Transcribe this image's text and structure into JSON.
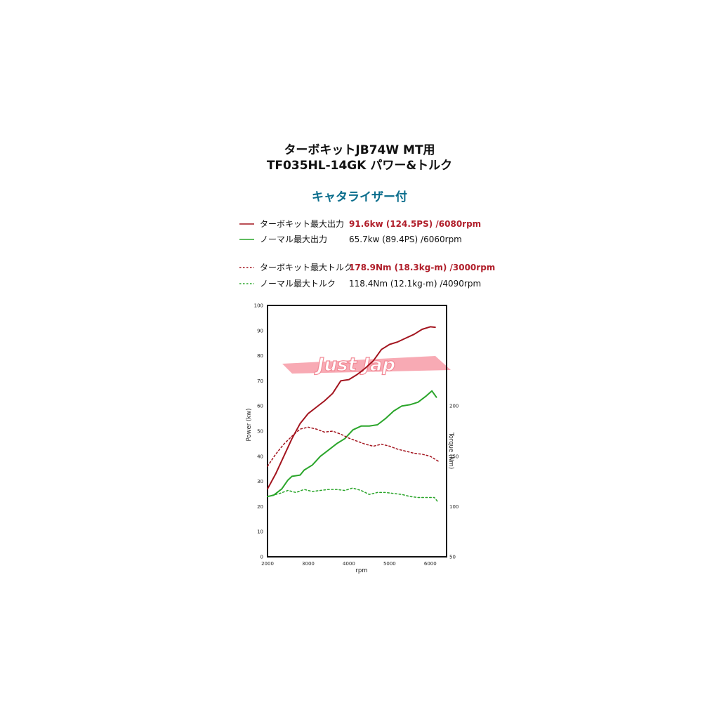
{
  "title_line1": "ターボキットJB74W MT用",
  "title_line2": "TF035HL-14GK パワー&トルク",
  "subtitle": "キャタライザー付",
  "watermark": "Just Jap",
  "legend": [
    {
      "name": "ターボキット最大出力",
      "value": "91.6kw (124.5PS) /6080rpm",
      "color": "#a3151f",
      "dashed": false,
      "highlight": true
    },
    {
      "name": "ノーマル最大出力",
      "value": "65.7kw (89.4PS) /6060rpm",
      "color": "#2aa52a",
      "dashed": false,
      "highlight": false
    },
    {
      "name": "ターボキット最大トルク",
      "value": "178.9Nm (18.3kg-m) /3000rpm",
      "color": "#a3151f",
      "dashed": true,
      "highlight": true
    },
    {
      "name": "ノーマル最大トルク",
      "value": "118.4Nm (12.1kg-m) /4090rpm",
      "color": "#2aa52a",
      "dashed": true,
      "highlight": false
    }
  ],
  "chart_data": {
    "type": "line",
    "xlabel": "rpm",
    "ylabel_left": "Power (kw)",
    "ylabel_right": "Torque (Nm)",
    "xlim": [
      2000,
      6400
    ],
    "ylim_left": [
      0,
      100
    ],
    "ylim_right": [
      50,
      300
    ],
    "x_ticks": [
      2000,
      3000,
      4000,
      5000,
      6000
    ],
    "y_ticks_left": [
      0,
      10,
      20,
      30,
      40,
      50,
      60,
      70,
      80,
      90,
      100
    ],
    "y_ticks_right": [
      50,
      100,
      150,
      200
    ],
    "series": [
      {
        "name": "ターボキット最大出力",
        "axis": "left",
        "color": "#a3151f",
        "dashed": false,
        "points": [
          [
            2000,
            27
          ],
          [
            2200,
            33
          ],
          [
            2400,
            40
          ],
          [
            2600,
            47
          ],
          [
            2800,
            53
          ],
          [
            3000,
            57
          ],
          [
            3200,
            59.5
          ],
          [
            3400,
            62
          ],
          [
            3600,
            65
          ],
          [
            3800,
            70
          ],
          [
            4000,
            70.5
          ],
          [
            4200,
            72.5
          ],
          [
            4400,
            75
          ],
          [
            4600,
            78
          ],
          [
            4800,
            82.5
          ],
          [
            5000,
            84.5
          ],
          [
            5200,
            85.5
          ],
          [
            5400,
            87
          ],
          [
            5600,
            88.5
          ],
          [
            5800,
            90.5
          ],
          [
            6000,
            91.5
          ],
          [
            6120,
            91.3
          ]
        ]
      },
      {
        "name": "ノーマル最大出力",
        "axis": "left",
        "color": "#2aa52a",
        "dashed": false,
        "points": [
          [
            2000,
            24
          ],
          [
            2150,
            24.5
          ],
          [
            2350,
            27
          ],
          [
            2500,
            30.5
          ],
          [
            2600,
            32
          ],
          [
            2800,
            32.5
          ],
          [
            2900,
            34.5
          ],
          [
            3100,
            36.5
          ],
          [
            3300,
            40
          ],
          [
            3500,
            42.5
          ],
          [
            3700,
            45
          ],
          [
            3900,
            47
          ],
          [
            4100,
            50.5
          ],
          [
            4300,
            52
          ],
          [
            4500,
            52
          ],
          [
            4700,
            52.5
          ],
          [
            4900,
            55
          ],
          [
            5100,
            58
          ],
          [
            5300,
            60
          ],
          [
            5500,
            60.5
          ],
          [
            5700,
            61.5
          ],
          [
            5900,
            64
          ],
          [
            6040,
            66
          ],
          [
            6150,
            63.5
          ]
        ]
      },
      {
        "name": "ターボキット最大トルク",
        "axis": "right",
        "color": "#a3151f",
        "dashed": true,
        "points": [
          [
            2000,
            140
          ],
          [
            2200,
            152
          ],
          [
            2400,
            162
          ],
          [
            2600,
            170
          ],
          [
            2800,
            177
          ],
          [
            3000,
            178.9
          ],
          [
            3200,
            177
          ],
          [
            3400,
            174
          ],
          [
            3600,
            175
          ],
          [
            3800,
            172
          ],
          [
            4000,
            168
          ],
          [
            4200,
            165
          ],
          [
            4400,
            162
          ],
          [
            4600,
            160
          ],
          [
            4800,
            162
          ],
          [
            5000,
            160
          ],
          [
            5200,
            157
          ],
          [
            5400,
            155
          ],
          [
            5600,
            153
          ],
          [
            5800,
            152
          ],
          [
            6000,
            150
          ],
          [
            6200,
            145
          ]
        ]
      },
      {
        "name": "ノーマル最大トルク",
        "axis": "right",
        "color": "#2aa52a",
        "dashed": true,
        "points": [
          [
            2100,
            111
          ],
          [
            2300,
            113
          ],
          [
            2500,
            116
          ],
          [
            2700,
            114
          ],
          [
            2900,
            117
          ],
          [
            3100,
            115
          ],
          [
            3300,
            116
          ],
          [
            3500,
            117
          ],
          [
            3700,
            117
          ],
          [
            3900,
            116
          ],
          [
            4090,
            118.4
          ],
          [
            4300,
            116
          ],
          [
            4500,
            112
          ],
          [
            4700,
            114
          ],
          [
            4900,
            114
          ],
          [
            5100,
            113
          ],
          [
            5300,
            112
          ],
          [
            5500,
            110
          ],
          [
            5700,
            109
          ],
          [
            5900,
            109
          ],
          [
            6100,
            109
          ],
          [
            6200,
            104
          ]
        ]
      }
    ]
  }
}
